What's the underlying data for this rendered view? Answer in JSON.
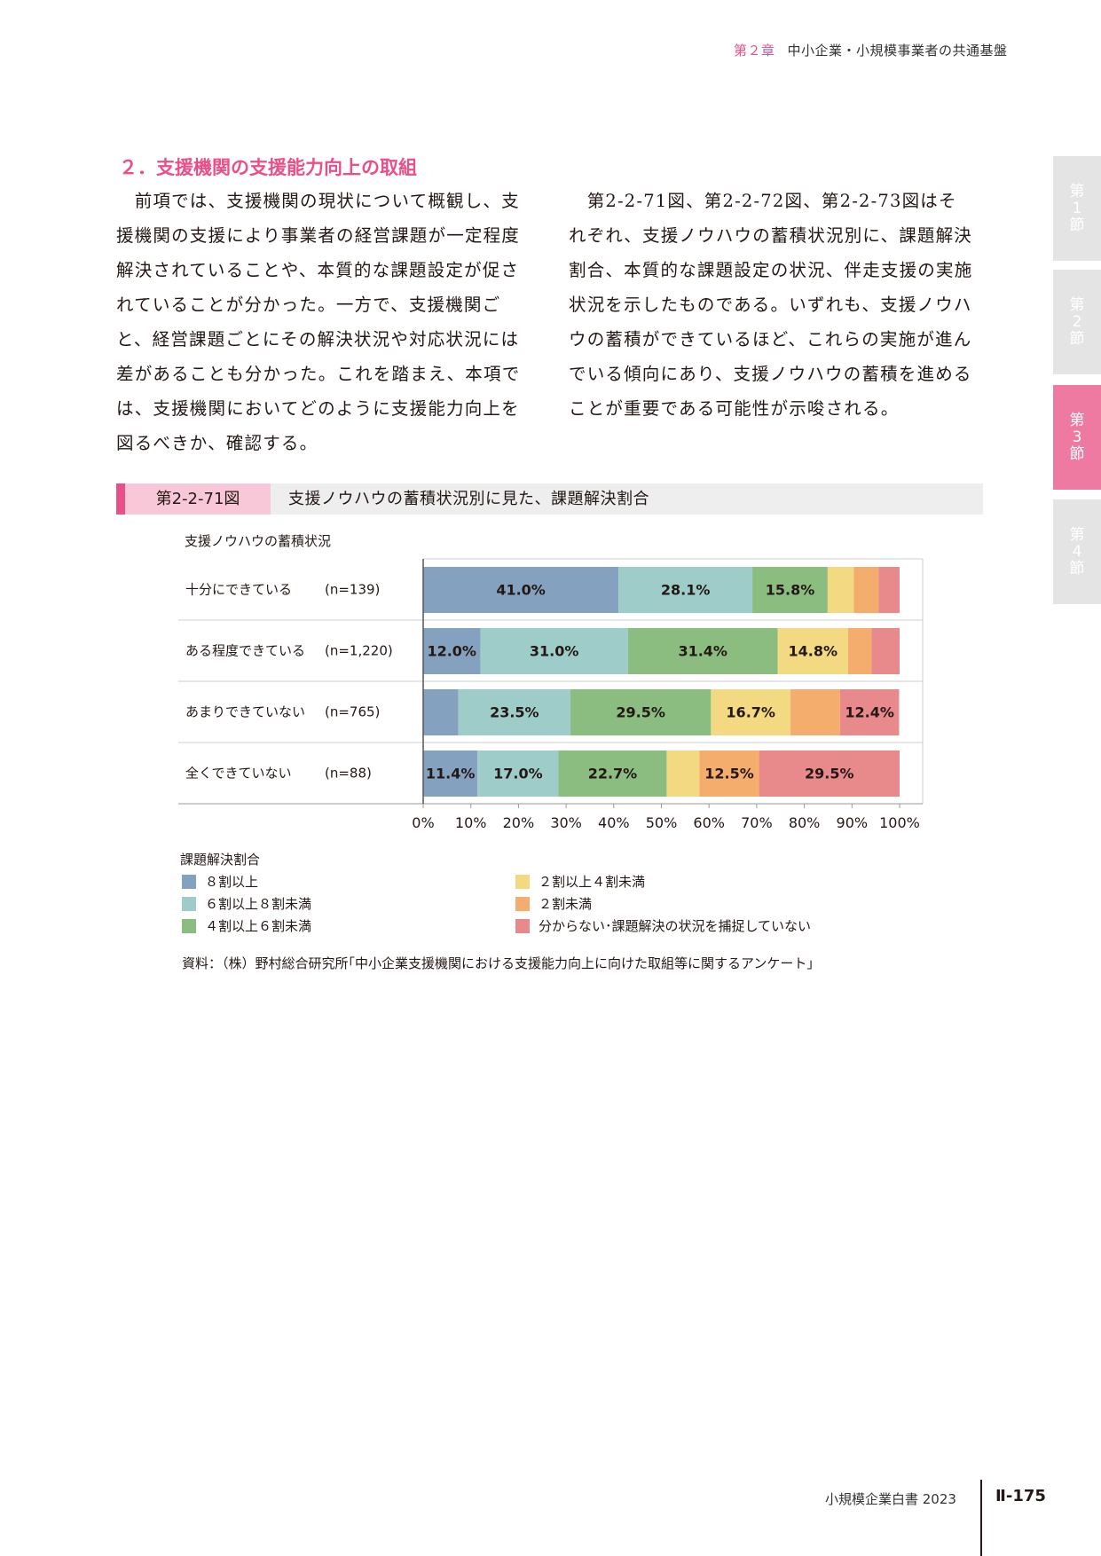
{
  "header": {
    "chapter": "第２章",
    "title": "中小企業・小規模事業者の共通基盤"
  },
  "side_tabs": [
    {
      "lines": [
        "第",
        "1",
        "節"
      ],
      "active": false
    },
    {
      "lines": [
        "第",
        "2",
        "節"
      ],
      "active": false
    },
    {
      "lines": [
        "第",
        "3",
        "節"
      ],
      "active": true
    },
    {
      "lines": [
        "第",
        "4",
        "節"
      ],
      "active": false
    }
  ],
  "section_heading": "２．支援機関の支援能力向上の取組",
  "left_paragraph": [
    "　前項では、支援機関の現状について概観し、支",
    "援機関の支援により事業者の経営課題が一定程度",
    "解決されていることや、本質的な課題設定が促さ",
    "れていることが分かった。一方で、支援機関ご",
    "と、経営課題ごとにその解決状況や対応状況には",
    "差があることも分かった。これを踏まえ、本項で",
    "は、支援機関においてどのように支援能力向上を",
    "図るべきか、確認する。"
  ],
  "right_paragraph": [
    "　第2-2-71図、第2-2-72図、第2-2-73図はそ",
    "れぞれ、支援ノウハウの蓄積状況別に、課題解決",
    "割合、本質的な課題設定の状況、伴走支援の実施",
    "状況を示したものである。いずれも、支援ノウハ",
    "ウの蓄積ができているほど、これらの実施が進ん",
    "でいる傾向にあり、支援ノウハウの蓄積を進める",
    "ことが重要である可能性が示唆される。"
  ],
  "figure": {
    "number": "第2-2-71図",
    "title": "支援ノウハウの蓄積状況別に見た、課題解決割合"
  },
  "chart_data": {
    "type": "bar",
    "orientation": "horizontal",
    "stacked": true,
    "ylabel": "支援ノウハウの蓄積状況",
    "categories": [
      "十分にできている",
      "ある程度できている",
      "あまりできていない",
      "全くできていない"
    ],
    "n_labels": [
      "(n=139)",
      "(n=1,220)",
      "(n=765)",
      "(n=88)"
    ],
    "xlim": [
      0,
      100
    ],
    "xticks": [
      "0%",
      "10%",
      "20%",
      "30%",
      "40%",
      "50%",
      "60%",
      "70%",
      "80%",
      "90%",
      "100%"
    ],
    "legend_title": "課題解決割合",
    "series": [
      {
        "name": "８割以上",
        "color": "#84a2c0",
        "values": [
          41.0,
          12.0,
          7.4,
          11.4
        ]
      },
      {
        "name": "６割以上８割未満",
        "color": "#9ecdc9",
        "values": [
          28.1,
          31.0,
          23.5,
          17.0
        ]
      },
      {
        "name": "４割以上６割未満",
        "color": "#8bbd80",
        "values": [
          15.8,
          31.4,
          29.5,
          22.7
        ]
      },
      {
        "name": "２割以上４割未満",
        "color": "#f2d982",
        "values": [
          5.5,
          14.8,
          16.7,
          6.9
        ]
      },
      {
        "name": "２割未満",
        "color": "#f4ad6c",
        "values": [
          5.2,
          4.9,
          10.4,
          12.5
        ]
      },
      {
        "name": "分からない･課題解決の状況を捕捉していない",
        "color": "#e8898b",
        "values": [
          4.4,
          5.9,
          12.4,
          29.5
        ]
      }
    ],
    "data_labels": [
      [
        "41.0%",
        "28.1%",
        "15.8%",
        "",
        "",
        ""
      ],
      [
        "12.0%",
        "31.0%",
        "31.4%",
        "14.8%",
        "",
        ""
      ],
      [
        "",
        "23.5%",
        "29.5%",
        "16.7%",
        "",
        "12.4%"
      ],
      [
        "11.4%",
        "17.0%",
        "22.7%",
        "",
        "12.5%",
        "29.5%"
      ]
    ]
  },
  "source": "資料：（株）野村総合研究所｢中小企業支援機関における支援能力向上に向けた取組等に関するアンケート｣",
  "footer": {
    "book": "小規模企業白書 2023",
    "page": "Ⅱ-175"
  }
}
